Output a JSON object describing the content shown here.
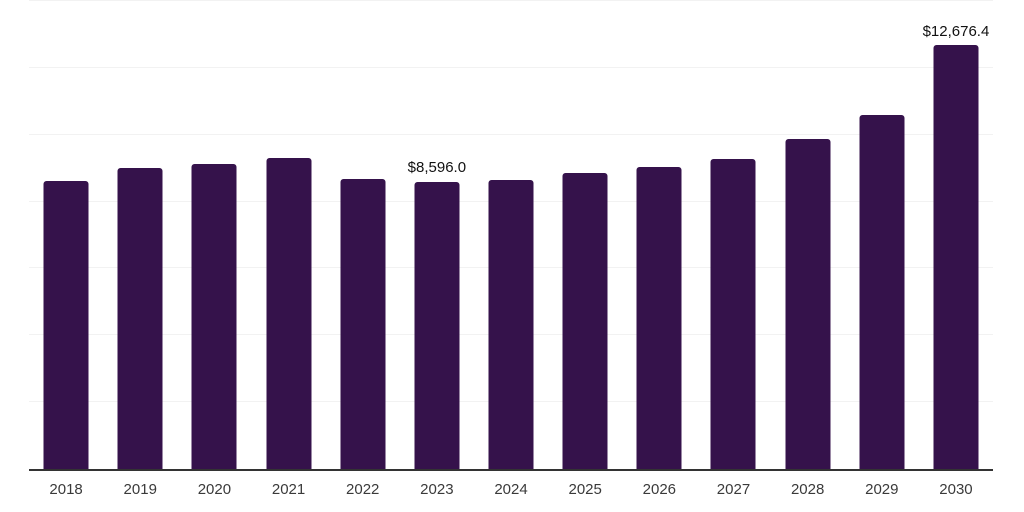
{
  "chart_data": {
    "type": "bar",
    "title": "",
    "xlabel": "",
    "ylabel": "",
    "categories": [
      "2018",
      "2019",
      "2020",
      "2021",
      "2022",
      "2023",
      "2024",
      "2025",
      "2026",
      "2027",
      "2028",
      "2029",
      "2030"
    ],
    "values": [
      8620,
      9010,
      9130,
      9310,
      8690,
      8596.0,
      8660,
      8870,
      9040,
      9280,
      9880,
      10600,
      12676.4
    ],
    "data_labels": [
      "",
      "",
      "",
      "",
      "",
      "$8,596.0",
      "",
      "",
      "",
      "",
      "",
      "",
      "$12,676.4"
    ],
    "ylim": [
      0,
      14030
    ],
    "gridline_values": [
      2000,
      4000,
      6000,
      8000,
      10000,
      12000,
      14000
    ],
    "grid": "horizontal-only",
    "legend": "none",
    "colors": {
      "bar": "#35124B",
      "gridline": "#f2f2f2",
      "axis_line": "#333333",
      "tick_label": "#3a3a3a",
      "data_label": "#111111",
      "background": "#ffffff"
    }
  }
}
